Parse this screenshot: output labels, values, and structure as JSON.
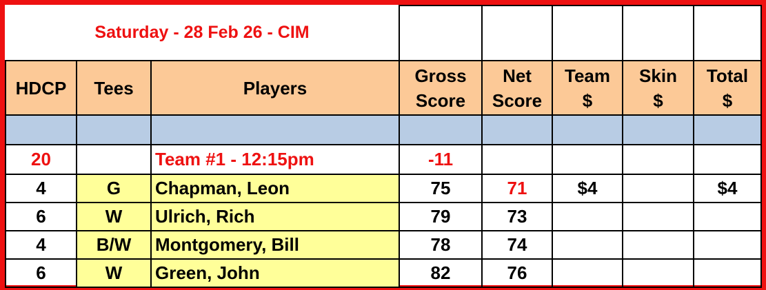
{
  "title": "Saturday - 28 Feb 26 - CIM",
  "headers": [
    "HDCP",
    "Tees",
    "Players",
    "Gross Score",
    "Net Score",
    "Team $",
    "Skin $",
    "Total $"
  ],
  "header_lines": [
    [
      "HDCP"
    ],
    [
      "Tees"
    ],
    [
      "Players"
    ],
    [
      "Gross",
      "Score"
    ],
    [
      "Net",
      "Score"
    ],
    [
      "Team",
      "$"
    ],
    [
      "Skin",
      "$"
    ],
    [
      "Total",
      "$"
    ]
  ],
  "team": {
    "hdcp": "20",
    "name": "Team #1 - 12:15pm",
    "gross": "-11"
  },
  "players": [
    {
      "hdcp": "4",
      "tees": "G",
      "name": "Chapman, Leon",
      "gross": "75",
      "net": "71",
      "team": "$4",
      "skin": "",
      "total": "$4",
      "net_highlight": true
    },
    {
      "hdcp": "6",
      "tees": "W",
      "name": "Ulrich, Rich",
      "gross": "79",
      "net": "73",
      "team": "",
      "skin": "",
      "total": ""
    },
    {
      "hdcp": "4",
      "tees": "B/W",
      "name": "Montgomery, Bill",
      "gross": "78",
      "net": "74",
      "team": "",
      "skin": "",
      "total": ""
    },
    {
      "hdcp": "6",
      "tees": "W",
      "name": "Green, John",
      "gross": "82",
      "net": "76",
      "team": "",
      "skin": "",
      "total": ""
    }
  ],
  "colors": {
    "border": "#ee1111",
    "header": "#fcc997",
    "band": "#b8cce4",
    "player_cells": "#ffff99",
    "accent_text": "#ee1111"
  }
}
